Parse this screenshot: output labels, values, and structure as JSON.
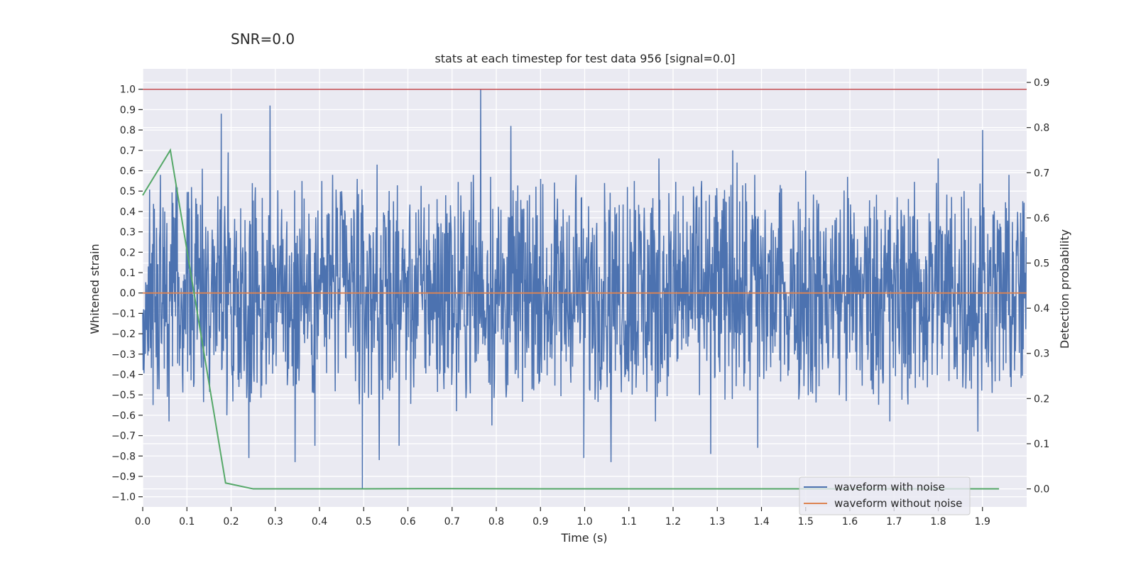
{
  "figure_title": "SNR=0.0",
  "chart_data": {
    "type": "line",
    "title": "stats at each timestep for test data 956 [signal=0.0]",
    "xlabel": "Time (s)",
    "ylabel": "Whitened strain",
    "y2label": "Detection probability",
    "xlim": [
      0.0,
      2.0
    ],
    "ylim": [
      -1.05,
      1.1
    ],
    "y2lim": [
      -0.04,
      0.93
    ],
    "xticks": [
      0.0,
      0.1,
      0.2,
      0.3,
      0.4,
      0.5,
      0.6,
      0.7,
      0.8,
      0.9,
      1.0,
      1.1,
      1.2,
      1.3,
      1.4,
      1.5,
      1.6,
      1.7,
      1.8,
      1.9
    ],
    "xtick_labels": [
      "0.0",
      "0.1",
      "0.2",
      "0.3",
      "0.4",
      "0.5",
      "0.6",
      "0.7",
      "0.8",
      "0.9",
      "1.0",
      "1.1",
      "1.2",
      "1.3",
      "1.4",
      "1.5",
      "1.6",
      "1.7",
      "1.8",
      "1.9"
    ],
    "yticks": [
      1.0,
      0.9,
      0.8,
      0.7,
      0.6,
      0.5,
      0.4,
      0.3,
      0.2,
      0.1,
      0.0,
      -0.1,
      -0.2,
      -0.3,
      -0.4,
      -0.5,
      -0.6,
      -0.7,
      -0.8,
      -0.9,
      -1.0
    ],
    "ytick_labels": [
      "1.0",
      "0.9",
      "0.8",
      "0.7",
      "0.6",
      "0.5",
      "0.4",
      "0.3",
      "0.2",
      "0.1",
      "0.0",
      "−0.1",
      "−0.2",
      "−0.3",
      "−0.4",
      "−0.5",
      "−0.6",
      "−0.7",
      "−0.8",
      "−0.9",
      "−1.0"
    ],
    "y2ticks": [
      0.9,
      0.8,
      0.7,
      0.6,
      0.5,
      0.4,
      0.3,
      0.2,
      0.1,
      0.0
    ],
    "y2tick_labels": [
      "0.9",
      "0.8",
      "0.7",
      "0.6",
      "0.5",
      "0.4",
      "0.3",
      "0.2",
      "0.1",
      "0.0"
    ],
    "grid": true,
    "legend_position": "lower-right",
    "threshold": {
      "y": 1.0,
      "color": "#c44e52"
    },
    "series": [
      {
        "name": "waveform with noise",
        "color": "#4c72b0",
        "axis": "left",
        "x_start": 0.0,
        "x_end": 2.0,
        "n_points": 2048,
        "peaks": [
          {
            "x": 0.04,
            "y": 0.58
          },
          {
            "x": 0.06,
            "y": -0.63
          },
          {
            "x": 0.11,
            "y": 0.52
          },
          {
            "x": 0.135,
            "y": 0.61
          },
          {
            "x": 0.178,
            "y": 0.88
          },
          {
            "x": 0.193,
            "y": 0.69
          },
          {
            "x": 0.19,
            "y": -0.6
          },
          {
            "x": 0.24,
            "y": -0.81
          },
          {
            "x": 0.288,
            "y": 0.92
          },
          {
            "x": 0.345,
            "y": -0.83
          },
          {
            "x": 0.36,
            "y": 0.55
          },
          {
            "x": 0.39,
            "y": -0.75
          },
          {
            "x": 0.405,
            "y": 0.55
          },
          {
            "x": 0.43,
            "y": 0.58
          },
          {
            "x": 0.485,
            "y": 0.56
          },
          {
            "x": 0.497,
            "y": -0.96
          },
          {
            "x": 0.53,
            "y": 0.63
          },
          {
            "x": 0.535,
            "y": -0.82
          },
          {
            "x": 0.58,
            "y": -0.75
          },
          {
            "x": 0.71,
            "y": -0.58
          },
          {
            "x": 0.748,
            "y": 0.58
          },
          {
            "x": 0.765,
            "y": 1.0
          },
          {
            "x": 0.787,
            "y": 0.57
          },
          {
            "x": 0.79,
            "y": -0.65
          },
          {
            "x": 0.833,
            "y": 0.82
          },
          {
            "x": 0.9,
            "y": 0.56
          },
          {
            "x": 0.98,
            "y": 0.58
          },
          {
            "x": 0.998,
            "y": -0.81
          },
          {
            "x": 1.045,
            "y": 0.54
          },
          {
            "x": 1.06,
            "y": -0.83
          },
          {
            "x": 1.112,
            "y": 0.55
          },
          {
            "x": 1.16,
            "y": -0.63
          },
          {
            "x": 1.168,
            "y": 0.66
          },
          {
            "x": 1.265,
            "y": 0.55
          },
          {
            "x": 1.285,
            "y": -0.79
          },
          {
            "x": 1.335,
            "y": 0.7
          },
          {
            "x": 1.345,
            "y": 0.64
          },
          {
            "x": 1.385,
            "y": 0.58
          },
          {
            "x": 1.392,
            "y": -0.76
          },
          {
            "x": 1.5,
            "y": 0.6
          },
          {
            "x": 1.595,
            "y": 0.57
          },
          {
            "x": 1.69,
            "y": -0.63
          },
          {
            "x": 1.8,
            "y": 0.66
          },
          {
            "x": 1.9,
            "y": 0.8
          },
          {
            "x": 1.89,
            "y": -0.68
          },
          {
            "x": 1.96,
            "y": 0.58
          }
        ],
        "typical_amplitude": 0.25,
        "note_peaks_are_read_from_chart": true
      },
      {
        "name": "waveform without noise",
        "color": "#dd8452",
        "axis": "left",
        "x": [
          0.0,
          2.0
        ],
        "y": [
          0.0,
          0.0
        ]
      },
      {
        "color": "#55a868",
        "axis": "right",
        "x": [
          0.0,
          0.0625,
          0.1875,
          0.25,
          0.5,
          0.625,
          1.0,
          1.5,
          1.9375
        ],
        "y": [
          0.65,
          0.75,
          0.013,
          0.0,
          0.0,
          0.0005,
          0.0,
          0.0,
          0.0
        ]
      }
    ]
  }
}
